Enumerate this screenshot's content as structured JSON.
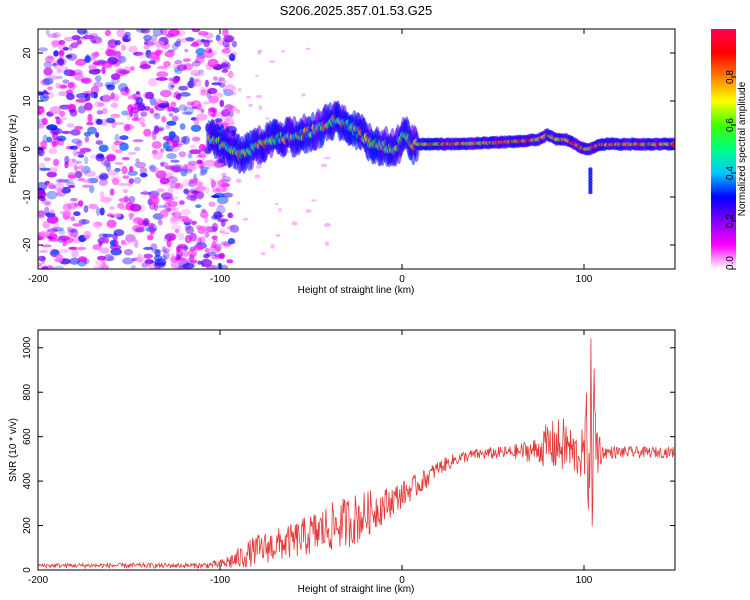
{
  "title": "S206.2025.357.01.53.G25",
  "colors": {
    "snr_line": "#e23a3a",
    "frame": "#000000",
    "background": "#ffffff"
  },
  "chart_data": [
    {
      "type": "heatmap",
      "name": "spectrogram",
      "xlabel": "Height of straight line (km)",
      "ylabel": "Frequency (Hz)",
      "xlim": [
        -200,
        150
      ],
      "ylim": [
        -25,
        25
      ],
      "xticks": [
        -200,
        -100,
        0,
        100
      ],
      "xtick_labels": [
        "-200",
        "-100",
        "0",
        "100"
      ],
      "yticks": [
        -20,
        -10,
        0,
        10,
        20
      ],
      "ytick_labels": [
        "-20",
        "-10",
        "0",
        "10",
        "20"
      ],
      "trace": {
        "description": "dominant frequency ridge versus height",
        "x": [
          -105,
          -95,
          -88,
          -80,
          -70,
          -60,
          -50,
          -42,
          -36,
          -30,
          -22,
          -16,
          -10,
          -5,
          -2,
          0,
          2,
          5,
          10,
          20,
          40,
          60,
          75,
          80,
          85,
          90,
          95,
          100,
          103,
          106,
          110,
          120,
          130,
          140,
          150
        ],
        "y": [
          2,
          0.5,
          -1.5,
          0.5,
          2,
          2.5,
          3.5,
          5,
          6.5,
          5,
          3,
          1,
          0.5,
          0,
          1,
          2.5,
          3,
          1,
          1,
          1,
          1.2,
          1.5,
          2,
          3,
          2,
          2,
          1,
          0,
          0,
          0.5,
          1,
          1,
          1,
          1,
          1
        ],
        "noise_region_x": [
          -200,
          -100
        ],
        "noise_region_y": [
          -25,
          25
        ]
      },
      "colorbar": {
        "label": "Normalized spectral amplitude",
        "range": [
          0,
          1
        ],
        "ticks": [
          0.0,
          0.2,
          0.4,
          0.6,
          0.8
        ],
        "tick_labels": [
          "0.0",
          "0.2",
          "0.4",
          "0.6",
          "0.8"
        ],
        "colormap": [
          "#ffffff",
          "#ff00ff",
          "#8000ff",
          "#0000ff",
          "#00c8ff",
          "#00ff80",
          "#40ff00",
          "#ffff00",
          "#ff8000",
          "#ff0000",
          "#ff0050"
        ]
      }
    },
    {
      "type": "line",
      "name": "snr",
      "xlabel": "Height of straight line (km)",
      "ylabel": "SNR (10 * v/v)",
      "xlim": [
        -200,
        150
      ],
      "ylim": [
        0,
        1080
      ],
      "xticks": [
        -200,
        -100,
        0,
        100
      ],
      "xtick_labels": [
        "-200",
        "-100",
        "0",
        "100"
      ],
      "yticks": [
        0,
        200,
        400,
        600,
        800,
        1000
      ],
      "ytick_labels": [
        "0",
        "200",
        "400",
        "600",
        "800",
        "1000"
      ],
      "envelope": {
        "description": "approximate mean SNR and noise amplitude vs height",
        "x": [
          -200,
          -110,
          -100,
          -90,
          -80,
          -60,
          -40,
          -25,
          -10,
          0,
          10,
          20,
          30,
          40,
          60,
          75,
          80,
          90,
          95,
          100,
          103,
          105,
          107,
          110,
          130,
          150
        ],
        "mean": [
          20,
          20,
          25,
          50,
          90,
          130,
          190,
          230,
          290,
          340,
          390,
          460,
          500,
          520,
          530,
          540,
          560,
          560,
          520,
          520,
          600,
          620,
          560,
          530,
          530,
          530
        ],
        "amplitude": [
          10,
          12,
          20,
          50,
          70,
          80,
          110,
          120,
          80,
          60,
          50,
          35,
          30,
          25,
          30,
          60,
          110,
          130,
          100,
          120,
          420,
          480,
          200,
          30,
          25,
          25
        ]
      }
    }
  ]
}
